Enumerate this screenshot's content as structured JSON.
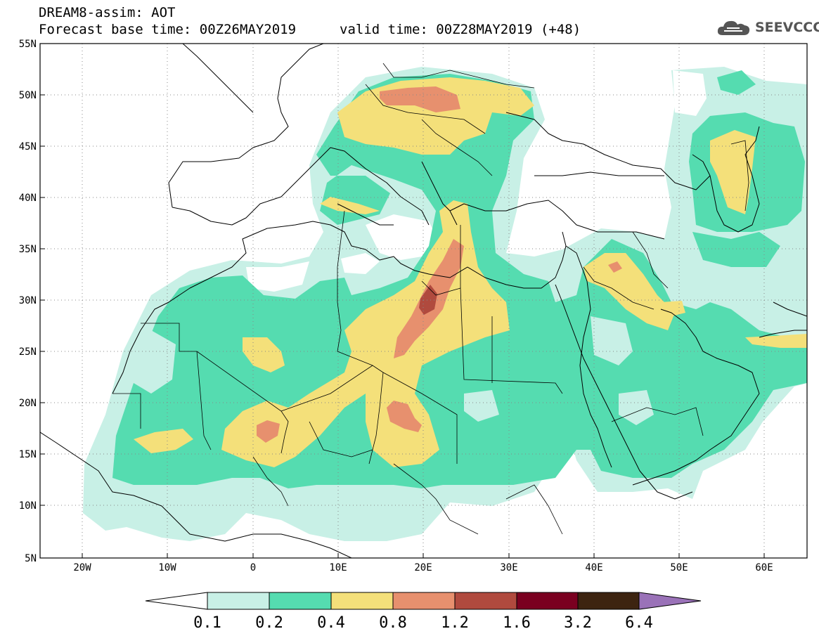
{
  "header": {
    "title": "DREAM8-assim: AOT",
    "base_time": "Forecast base time: 00Z26MAY2019",
    "valid_time": "valid time: 00Z28MAY2019 (+48)"
  },
  "logo": {
    "text": "SEEVCCC",
    "icon": "cloud-icon"
  },
  "map": {
    "lat_labels": [
      "55N",
      "50N",
      "45N",
      "40N",
      "35N",
      "30N",
      "25N",
      "20N",
      "15N",
      "10N",
      "5N"
    ],
    "lon_labels": [
      "20W",
      "10W",
      "0",
      "10E",
      "20E",
      "30E",
      "40E",
      "50E",
      "60E"
    ],
    "lat_range": [
      5,
      55
    ],
    "lon_range": [
      -25,
      65
    ],
    "grid": "dotted"
  },
  "colorbar": {
    "labels": [
      "0.1",
      "0.2",
      "0.4",
      "0.8",
      "1.2",
      "1.6",
      "3.2",
      "6.4"
    ],
    "colors": [
      "#ffffff",
      "#c8f0e6",
      "#55dcb0",
      "#f4e07a",
      "#e7906e",
      "#b04a3e",
      "#7a0020",
      "#3d2410",
      "#9a72b8"
    ]
  },
  "colors": {
    "lvl1": "#c8f0e6",
    "lvl2": "#55dcb0",
    "lvl3": "#f4e07a",
    "lvl4": "#e7906e",
    "lvl5": "#b04a3e"
  }
}
